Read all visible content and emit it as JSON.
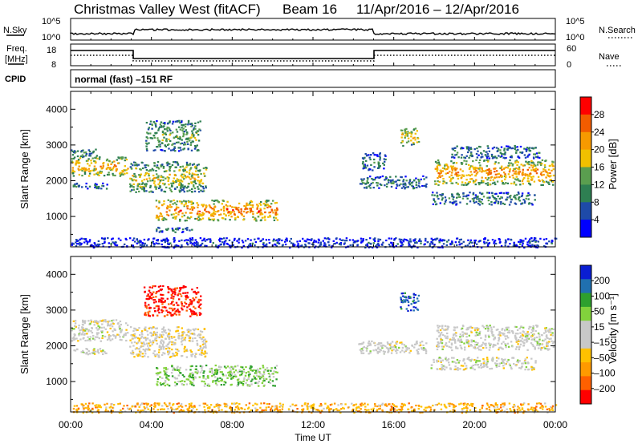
{
  "header": {
    "title": "Christmas Valley West (fitACF)",
    "beam": "Beam 16",
    "date_range": "11/Apr/2016 – 12/Apr/2016"
  },
  "status_panels": {
    "nsky_label": "N.Sky",
    "nsearch_label": "N.Search",
    "noise_ticks": [
      "10^5",
      "10^0"
    ],
    "freq_label_1": "Freq.",
    "freq_label_2": "[MHz]",
    "freq_ticks": [
      "18",
      "8"
    ],
    "nave_label": "Nave",
    "nave_ticks": [
      "60",
      "0"
    ],
    "cpid_label": "CPID",
    "cpid_text": "normal (fast) –151 RF"
  },
  "colors": {
    "power": [
      "#0000ff",
      "#1e4aa8",
      "#2e7f52",
      "#5a9e4f",
      "#f0c000",
      "#f79a00",
      "#f25c00",
      "#ff0000"
    ],
    "velocity": [
      "#ff0000",
      "#ff6000",
      "#ff9a00",
      "#ffc100",
      "#c8c8c8",
      "#c8c8c8",
      "#82d23c",
      "#2ea02e",
      "#2070b0",
      "#0a1ed2"
    ]
  },
  "chart_data": [
    {
      "type": "heatmap",
      "name": "power",
      "xlabel": "",
      "ylabel": "Slant Range [km]",
      "x_range_hours": [
        0,
        24
      ],
      "ylim": [
        150,
        4500
      ],
      "y_ticks": [
        1000,
        2000,
        3000,
        4000
      ],
      "colorbar": {
        "label": "Power [dB]",
        "range": [
          0,
          32
        ],
        "ticks": [
          "4",
          "8",
          "12",
          "16",
          "20",
          "24",
          "28"
        ]
      },
      "regions": [
        {
          "t": [
            0.0,
            2.8
          ],
          "r": [
            2150,
            2700
          ],
          "level": 0.7
        },
        {
          "t": [
            0.0,
            1.3
          ],
          "r": [
            2700,
            2900
          ],
          "level": 0.4
        },
        {
          "t": [
            0.1,
            1.8
          ],
          "r": [
            1780,
            1950
          ],
          "level": 0.3
        },
        {
          "t": [
            2.9,
            6.7
          ],
          "r": [
            1700,
            2550
          ],
          "level": 0.55
        },
        {
          "t": [
            3.7,
            6.4
          ],
          "r": [
            2850,
            3700
          ],
          "level": 0.45
        },
        {
          "t": [
            4.2,
            10.2
          ],
          "r": [
            900,
            1480
          ],
          "level": 0.8
        },
        {
          "t": [
            4.2,
            6.0
          ],
          "r": [
            580,
            720
          ],
          "level": 0.3
        },
        {
          "t": [
            14.2,
            17.6
          ],
          "r": [
            1800,
            2150
          ],
          "level": 0.3
        },
        {
          "t": [
            14.4,
            15.6
          ],
          "r": [
            2300,
            2800
          ],
          "level": 0.3
        },
        {
          "t": [
            16.3,
            17.2
          ],
          "r": [
            3000,
            3500
          ],
          "level": 0.6
        },
        {
          "t": [
            18.0,
            23.9
          ],
          "r": [
            1900,
            2600
          ],
          "level": 0.75
        },
        {
          "t": [
            17.8,
            23.0
          ],
          "r": [
            1350,
            1700
          ],
          "level": 0.35
        },
        {
          "t": [
            18.8,
            23.2
          ],
          "r": [
            2650,
            3000
          ],
          "level": 0.3
        },
        {
          "t": [
            0.0,
            24.0
          ],
          "r": [
            150,
            420
          ],
          "level": 0.15
        }
      ]
    },
    {
      "type": "heatmap",
      "name": "velocity",
      "xlabel": "Time UT",
      "ylabel": "Slant Range [km]",
      "x_range_hours": [
        0,
        24
      ],
      "x_ticks": [
        "00:00",
        "04:00",
        "08:00",
        "12:00",
        "16:00",
        "20:00",
        "00:00"
      ],
      "ylim": [
        150,
        4500
      ],
      "y_ticks": [
        1000,
        2000,
        3000,
        4000
      ],
      "colorbar": {
        "label": "Velocity [m s⁻¹]",
        "ticks": [
          "200",
          "100",
          "50",
          "15",
          "–15",
          "–50",
          "–100",
          "–200"
        ]
      },
      "regions": [
        {
          "t": [
            0.0,
            2.8
          ],
          "r": [
            2150,
            2750
          ],
          "level": 0.5
        },
        {
          "t": [
            0.1,
            1.8
          ],
          "r": [
            1780,
            1950
          ],
          "level": 0.5
        },
        {
          "t": [
            2.9,
            6.7
          ],
          "r": [
            1700,
            2550
          ],
          "level": 0.45
        },
        {
          "t": [
            3.6,
            6.4
          ],
          "r": [
            2850,
            3700
          ],
          "level": 0.05
        },
        {
          "t": [
            4.2,
            10.2
          ],
          "r": [
            900,
            1480
          ],
          "level": 0.65
        },
        {
          "t": [
            14.2,
            17.6
          ],
          "r": [
            1800,
            2150
          ],
          "level": 0.5
        },
        {
          "t": [
            16.3,
            17.2
          ],
          "r": [
            3000,
            3500
          ],
          "level": 0.9
        },
        {
          "t": [
            18.0,
            23.9
          ],
          "r": [
            1900,
            2600
          ],
          "level": 0.5
        },
        {
          "t": [
            17.8,
            23.0
          ],
          "r": [
            1350,
            1700
          ],
          "level": 0.5
        },
        {
          "t": [
            0.0,
            24.0
          ],
          "r": [
            150,
            420
          ],
          "level": 0.3
        }
      ]
    }
  ]
}
